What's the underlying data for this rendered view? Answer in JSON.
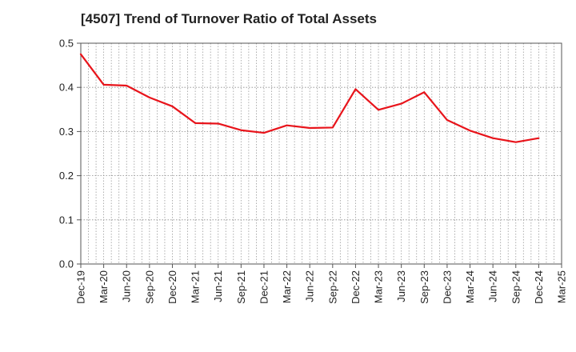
{
  "chart_data": {
    "type": "line",
    "title": "[4507]  Trend of Turnover Ratio of Total Assets",
    "xlabel": "",
    "ylabel": "",
    "ylim": [
      0,
      0.5
    ],
    "yticks": [
      "0.0",
      "0.1",
      "0.2",
      "0.3",
      "0.4",
      "0.5"
    ],
    "grid": true,
    "legend": "none",
    "line_color": "#e8141b",
    "x_tick_labels": [
      "Dec-19",
      "Mar-20",
      "Jun-20",
      "Sep-20",
      "Dec-20",
      "Mar-21",
      "Jun-21",
      "Sep-21",
      "Dec-21",
      "Mar-22",
      "Jun-22",
      "Sep-22",
      "Dec-22",
      "Mar-23",
      "Jun-23",
      "Sep-23",
      "Dec-23",
      "Mar-24",
      "Jun-24",
      "Sep-24",
      "Dec-24",
      "Mar-25"
    ],
    "series": [
      {
        "x": [
          "Dec-19",
          "Mar-20",
          "Jun-20",
          "Sep-20",
          "Dec-20",
          "Mar-21",
          "Jun-21",
          "Sep-21",
          "Dec-21",
          "Mar-22",
          "Jun-22",
          "Sep-22",
          "Dec-22",
          "Mar-23",
          "Jun-23",
          "Sep-23",
          "Dec-23",
          "Mar-24",
          "Jun-24",
          "Sep-24",
          "Dec-24"
        ],
        "values": [
          0.475,
          0.406,
          0.404,
          0.377,
          0.357,
          0.319,
          0.318,
          0.303,
          0.297,
          0.314,
          0.308,
          0.309,
          0.396,
          0.349,
          0.363,
          0.389,
          0.326,
          0.302,
          0.285,
          0.276,
          0.285
        ]
      }
    ]
  }
}
